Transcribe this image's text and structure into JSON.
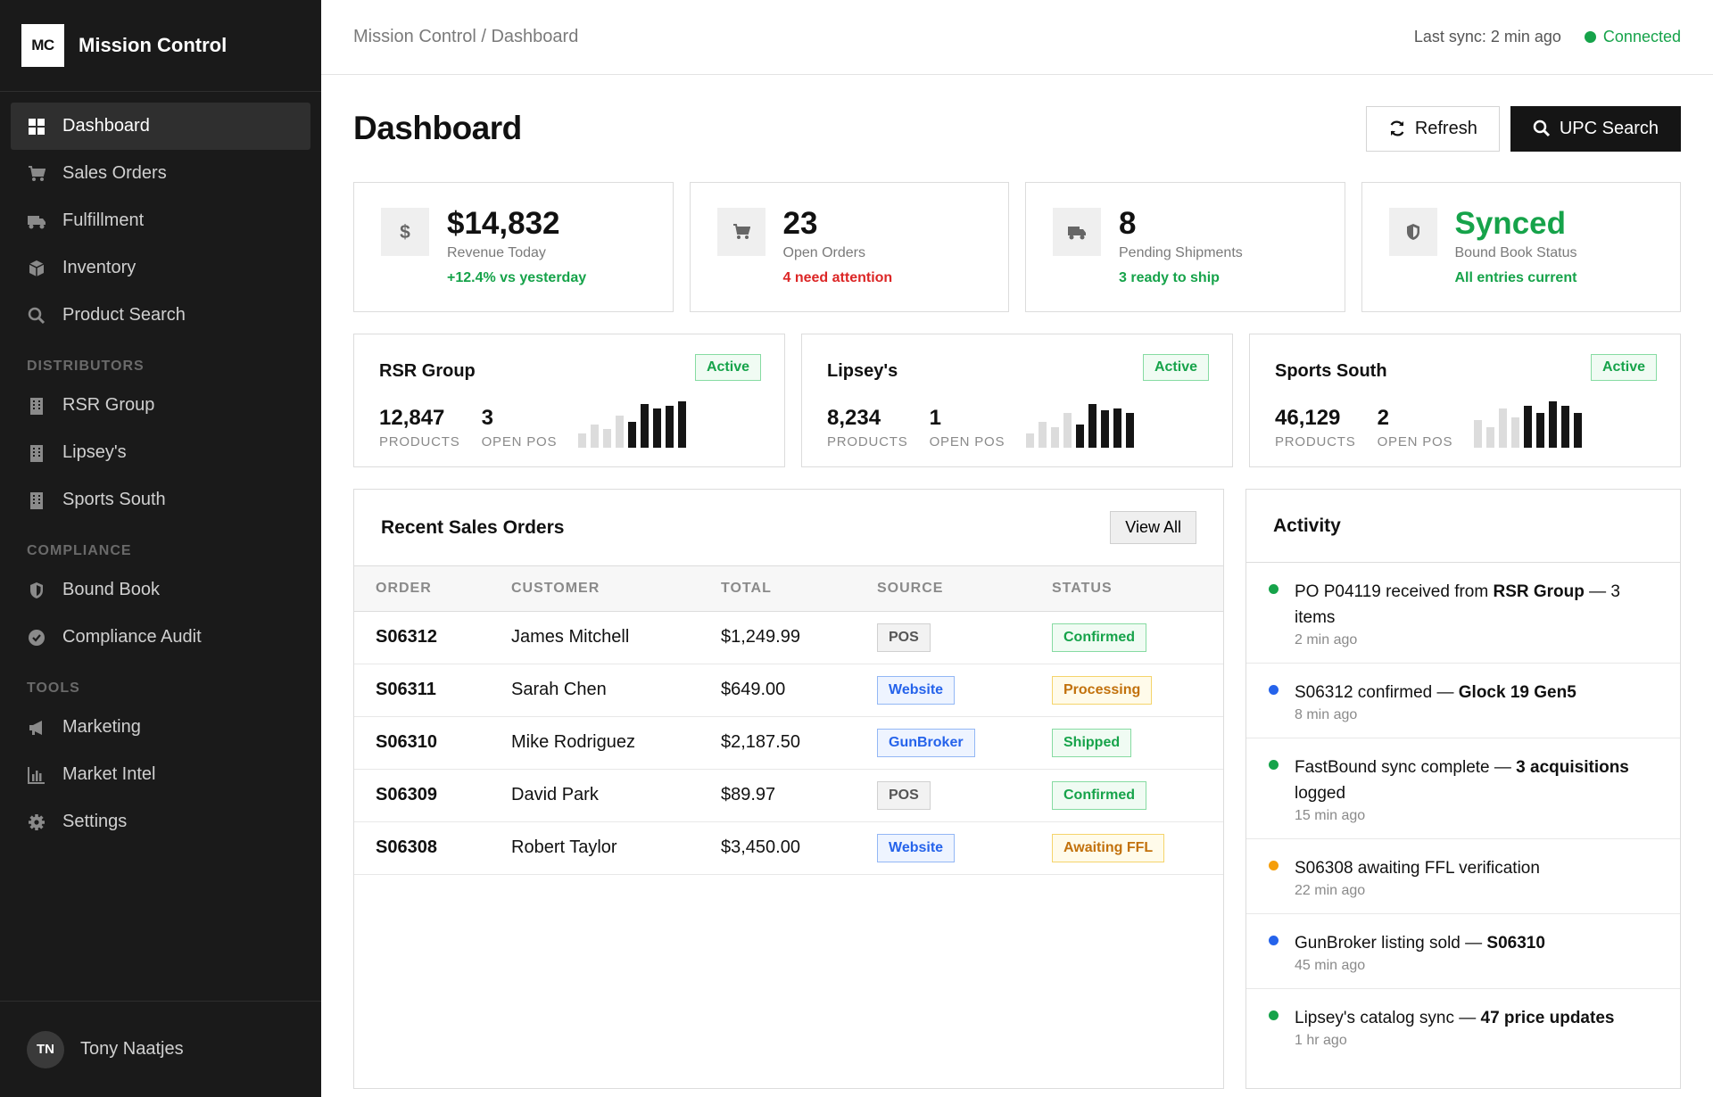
{
  "brand": {
    "logo": "MC",
    "name": "Mission Control"
  },
  "nav": {
    "main": [
      {
        "label": "Dashboard",
        "icon": "grid-icon",
        "active": true
      },
      {
        "label": "Sales Orders",
        "icon": "cart-icon"
      },
      {
        "label": "Fulfillment",
        "icon": "truck-icon"
      },
      {
        "label": "Inventory",
        "icon": "box-icon"
      },
      {
        "label": "Product Search",
        "icon": "search-icon"
      }
    ],
    "distributors_label": "DISTRIBUTORS",
    "distributors": [
      {
        "label": "RSR Group",
        "icon": "building-icon"
      },
      {
        "label": "Lipsey's",
        "icon": "building-icon"
      },
      {
        "label": "Sports South",
        "icon": "building-icon"
      }
    ],
    "compliance_label": "COMPLIANCE",
    "compliance": [
      {
        "label": "Bound Book",
        "icon": "shield-icon"
      },
      {
        "label": "Compliance Audit",
        "icon": "check-circle-icon"
      }
    ],
    "tools_label": "TOOLS",
    "tools": [
      {
        "label": "Marketing",
        "icon": "megaphone-icon"
      },
      {
        "label": "Market Intel",
        "icon": "bar-chart-icon"
      },
      {
        "label": "Settings",
        "icon": "gear-icon"
      }
    ]
  },
  "user": {
    "initials": "TN",
    "name": "Tony Naatjes"
  },
  "topbar": {
    "breadcrumb": "Mission Control / Dashboard",
    "last_sync": "Last sync: 2 min ago",
    "status": "Connected"
  },
  "page": {
    "title": "Dashboard",
    "refresh_label": "Refresh",
    "upc_label": "UPC Search"
  },
  "stats": [
    {
      "value": "$14,832",
      "label": "Revenue Today",
      "sub": "+12.4% vs yesterday",
      "icon": "dollar-icon",
      "sub_color": "green"
    },
    {
      "value": "23",
      "label": "Open Orders",
      "sub": "4 need attention",
      "icon": "cart-icon",
      "sub_color": "red"
    },
    {
      "value": "8",
      "label": "Pending Shipments",
      "sub": "3 ready to ship",
      "icon": "truck-icon",
      "sub_color": "green"
    },
    {
      "value": "Synced",
      "label": "Bound Book Status",
      "sub": "All entries current",
      "icon": "shield-icon",
      "sub_color": "green"
    }
  ],
  "distributors": [
    {
      "name": "RSR Group",
      "status": "Active",
      "products": "12,847",
      "products_label": "PRODUCTS",
      "open_pos": "3",
      "open_pos_label": "OPEN POS",
      "trend": [
        0.3,
        0.5,
        0.4,
        0.7,
        0.55,
        0.95,
        0.85,
        0.9,
        1.0
      ]
    },
    {
      "name": "Lipsey's",
      "status": "Active",
      "products": "8,234",
      "products_label": "PRODUCTS",
      "open_pos": "1",
      "open_pos_label": "OPEN POS",
      "trend": [
        0.3,
        0.55,
        0.45,
        0.75,
        0.5,
        0.95,
        0.8,
        0.85,
        0.75
      ]
    },
    {
      "name": "Sports South",
      "status": "Active",
      "products": "46,129",
      "products_label": "PRODUCTS",
      "open_pos": "2",
      "open_pos_label": "OPEN POS",
      "trend": [
        0.6,
        0.45,
        0.85,
        0.65,
        0.9,
        0.75,
        1.0,
        0.9,
        0.75
      ]
    }
  ],
  "orders": {
    "title": "Recent Sales Orders",
    "view_all": "View All",
    "columns": [
      "ORDER",
      "CUSTOMER",
      "TOTAL",
      "SOURCE",
      "STATUS"
    ],
    "rows": [
      {
        "order": "S06312",
        "customer": "James Mitchell",
        "total": "$1,249.99",
        "source": "POS",
        "status": "Confirmed"
      },
      {
        "order": "S06311",
        "customer": "Sarah Chen",
        "total": "$649.00",
        "source": "Website",
        "status": "Processing"
      },
      {
        "order": "S06310",
        "customer": "Mike Rodriguez",
        "total": "$2,187.50",
        "source": "GunBroker",
        "status": "Shipped"
      },
      {
        "order": "S06309",
        "customer": "David Park",
        "total": "$89.97",
        "source": "POS",
        "status": "Confirmed"
      },
      {
        "order": "S06308",
        "customer": "Robert Taylor",
        "total": "$3,450.00",
        "source": "Website",
        "status": "Awaiting FFL"
      }
    ]
  },
  "activity": {
    "title": "Activity",
    "items": [
      {
        "text": "PO P04119 received from ",
        "bold": "RSR Group",
        "after": " — 3 items",
        "time": "2 min ago",
        "color": "#16a34a"
      },
      {
        "text": "S06312 confirmed — ",
        "bold": "Glock 19 Gen5",
        "after": "",
        "time": "8 min ago",
        "color": "#2563eb"
      },
      {
        "text": "FastBound sync complete — ",
        "bold": "3 acquisitions",
        "after": " logged",
        "time": "15 min ago",
        "color": "#16a34a"
      },
      {
        "text": "S06308 awaiting FFL verification",
        "bold": "",
        "after": "",
        "time": "22 min ago",
        "color": "#f59e0b"
      },
      {
        "text": "GunBroker listing sold — ",
        "bold": "S06310",
        "after": "",
        "time": "45 min ago",
        "color": "#2563eb"
      },
      {
        "text": "Lipsey's catalog sync — ",
        "bold": "47 price updates",
        "after": "",
        "time": "1 hr ago",
        "color": "#16a34a"
      }
    ]
  }
}
